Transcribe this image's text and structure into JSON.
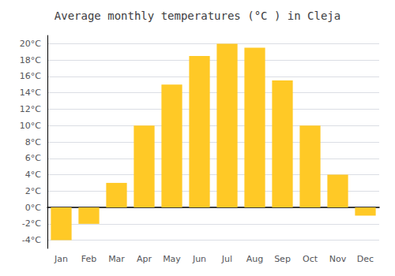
{
  "chart_data": {
    "type": "bar",
    "title": "Average monthly temperatures (°C ) in Cleja",
    "categories": [
      "Jan",
      "Feb",
      "Mar",
      "Apr",
      "May",
      "Jun",
      "Jul",
      "Aug",
      "Sep",
      "Oct",
      "Nov",
      "Dec"
    ],
    "values": [
      -4,
      -2,
      3,
      10,
      15,
      18.5,
      20,
      19.5,
      15.5,
      10,
      4,
      -1
    ],
    "color": "#FFC926",
    "ylim": [
      -5,
      21
    ],
    "yticks": [
      {
        "value": -4,
        "label": "-4°C"
      },
      {
        "value": -2,
        "label": "-2°C"
      },
      {
        "value": 0,
        "label": "0°C"
      },
      {
        "value": 2,
        "label": "2°C"
      },
      {
        "value": 4,
        "label": "4°C"
      },
      {
        "value": 6,
        "label": "6°C"
      },
      {
        "value": 8,
        "label": "8°C"
      },
      {
        "value": 10,
        "label": "10°C"
      },
      {
        "value": 12,
        "label": "12°C"
      },
      {
        "value": 14,
        "label": "14°C"
      },
      {
        "value": 16,
        "label": "16°C"
      },
      {
        "value": 18,
        "label": "18°C"
      },
      {
        "value": 20,
        "label": "20°C"
      }
    ],
    "grid": true
  }
}
